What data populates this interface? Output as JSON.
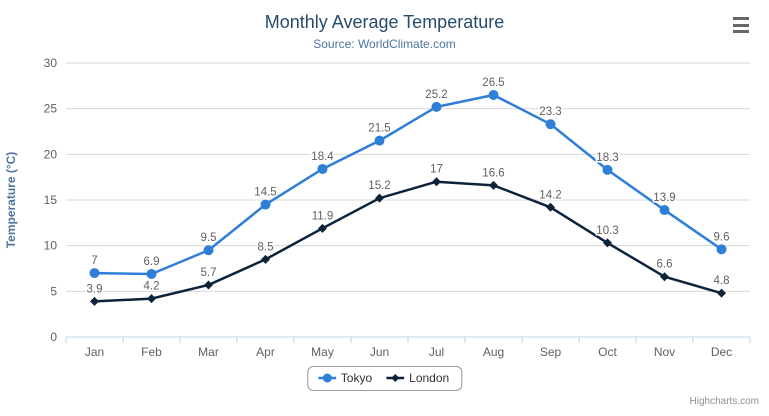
{
  "header": {
    "title": "Monthly Average Temperature",
    "subtitle": "Source: WorldClimate.com"
  },
  "credits": {
    "label": "Highcharts.com"
  },
  "context_menu": {
    "icon": "hamburger-icon"
  },
  "colors": {
    "title": "#274b6d",
    "subtitle": "#4d759e",
    "axis_title": "#4d759e",
    "axis_label": "#606060",
    "data_label": "#606060",
    "grid": "#d8d8d8",
    "axis_line": "#c0d0e0",
    "legend_text": "#333333",
    "legend_border": "#999999",
    "credits": "#909090",
    "menu_icon": "#666666",
    "background": "#ffffff"
  },
  "chart_data": {
    "type": "line",
    "title": "Monthly Average Temperature",
    "subtitle": "Source: WorldClimate.com",
    "xlabel": "",
    "ylabel": "Temperature (°C)",
    "ylim": [
      0,
      30
    ],
    "ytick_step": 5,
    "grid": true,
    "data_labels": true,
    "legend_position": "bottom",
    "categories": [
      "Jan",
      "Feb",
      "Mar",
      "Apr",
      "May",
      "Jun",
      "Jul",
      "Aug",
      "Sep",
      "Oct",
      "Nov",
      "Dec"
    ],
    "series": [
      {
        "name": "Tokyo",
        "color": "#2f7ed8",
        "marker": "circle",
        "values": [
          7,
          6.9,
          9.5,
          14.5,
          18.4,
          21.5,
          25.2,
          26.5,
          23.3,
          18.3,
          13.9,
          9.6
        ]
      },
      {
        "name": "London",
        "color": "#0d233a",
        "marker": "diamond",
        "values": [
          3.9,
          4.2,
          5.7,
          8.5,
          11.9,
          15.2,
          17,
          16.6,
          14.2,
          10.3,
          6.6,
          4.8
        ]
      }
    ]
  }
}
